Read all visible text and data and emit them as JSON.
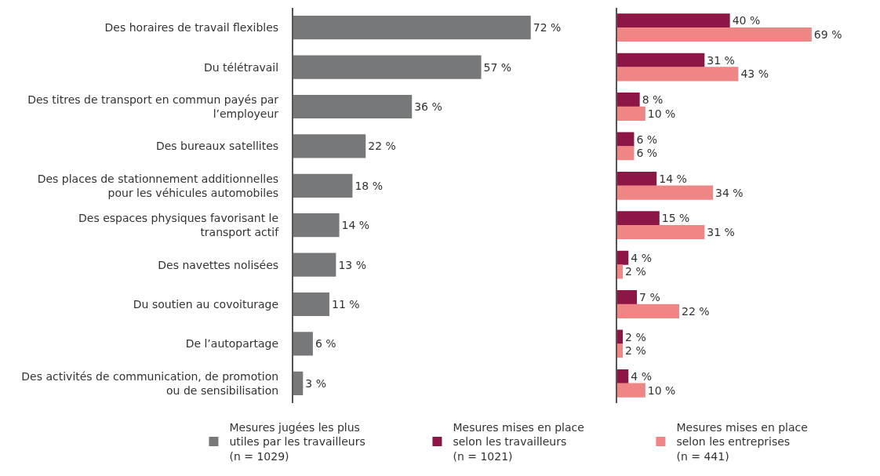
{
  "chart_data": [
    {
      "type": "bar",
      "orientation": "horizontal",
      "legend": "bottom",
      "tick_labels": "y",
      "categories": [
        "Des horaires de travail flexibles",
        "Du télétravail",
        "Des titres de transport en commun payés par l’employeur",
        "Des bureaux satellites",
        "Des places de stationnement additionnelles pour les véhicules automobiles",
        "Des espaces physiques favorisant le transport actif",
        "Des navettes nolisées",
        "Du soutien au covoiturage",
        "De l’autopartage",
        "Des activités de communication, de promotion ou de sensibilisation"
      ],
      "series": [
        {
          "name": "Mesures jugées les plus utiles par les travailleurs (n = 1029)",
          "color": "#76787a",
          "values": [
            72,
            57,
            36,
            22,
            18,
            14,
            13,
            11,
            6,
            3
          ],
          "value_labels": [
            "72 %",
            "57 %",
            "36 %",
            "22 %",
            "18 %",
            "14 %",
            "13 %",
            "11 %",
            "6 %",
            "3 %"
          ]
        }
      ]
    },
    {
      "type": "bar",
      "orientation": "horizontal",
      "legend": "bottom",
      "tick_labels": false,
      "categories": [
        null,
        null,
        null,
        null,
        null,
        null,
        null,
        null,
        null,
        null
      ],
      "series": [
        {
          "name": "Mesures mises en place selon les travailleurs (n = 1021)",
          "color": "#8e1646",
          "values": [
            40,
            31,
            8,
            6,
            14,
            15,
            4,
            7,
            2,
            4
          ],
          "value_labels": [
            "40 %",
            "31 %",
            "8 %",
            "6 %",
            "14 %",
            "15 %",
            "4 %",
            "7 %",
            "2 %",
            "4 %"
          ]
        },
        {
          "name": "Mesures mises en place selon les entreprises (n = 441)",
          "color": "#f08585",
          "values": [
            69,
            43,
            10,
            6,
            34,
            31,
            2,
            22,
            2,
            10
          ],
          "value_labels": [
            "69 %",
            "43 %",
            "10 %",
            "6 %",
            "34 %",
            "31 %",
            "2 %",
            "22 %",
            "2 %",
            "10 %"
          ]
        }
      ]
    }
  ]
}
